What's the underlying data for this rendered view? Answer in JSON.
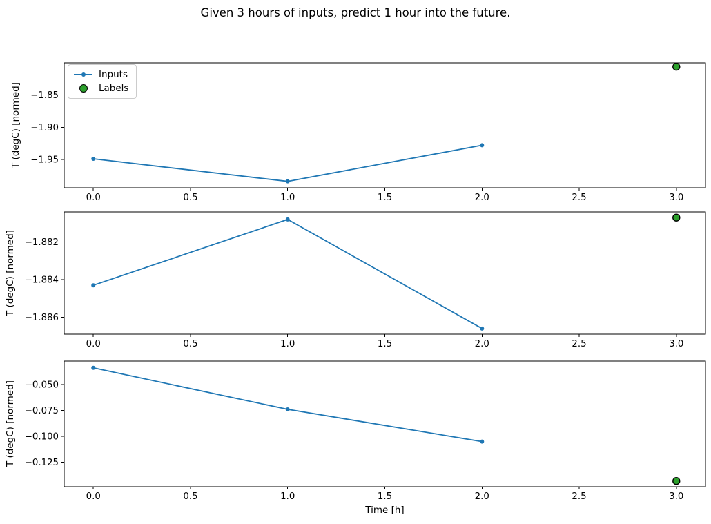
{
  "title": "Given 3 hours of inputs, predict 1 hour into the future.",
  "xlabel": "Time [h]",
  "legend": {
    "inputs": "Inputs",
    "labels": "Labels",
    "position": "upper left of first subplot"
  },
  "colors": {
    "inputs_line": "#1f77b4",
    "labels_fill": "#2ca02c",
    "labels_edge": "#000000",
    "axes": "#000000",
    "background": "#ffffff",
    "legend_border": "#cccccc"
  },
  "chart_data": [
    {
      "type": "line",
      "ylabel": "T (degC) [normed]",
      "series": [
        {
          "name": "Inputs",
          "x": [
            0,
            1,
            2
          ],
          "y": [
            -1.949,
            -1.984,
            -1.928
          ]
        }
      ],
      "labels_scatter": {
        "name": "Labels",
        "x": [
          3
        ],
        "y": [
          -1.806
        ]
      },
      "xlim": [
        -0.15,
        3.15
      ],
      "ylim": [
        -1.994,
        -1.8
      ],
      "xticks": [
        0,
        0.5,
        1,
        1.5,
        2,
        2.5,
        3
      ],
      "xtick_labels": [
        "0.0",
        "0.5",
        "1.0",
        "1.5",
        "2.0",
        "2.5",
        "3.0"
      ],
      "yticks": [
        -1.85,
        -1.9,
        -1.95
      ],
      "ytick_labels": [
        "−1.85",
        "−1.90",
        "−1.95"
      ],
      "grid": false,
      "legend": true
    },
    {
      "type": "line",
      "ylabel": "T (degC) [normed]",
      "series": [
        {
          "name": "Inputs",
          "x": [
            0,
            1,
            2
          ],
          "y": [
            -1.8843,
            -1.8808,
            -1.8866
          ]
        }
      ],
      "labels_scatter": {
        "name": "Labels",
        "x": [
          3
        ],
        "y": [
          -1.8807
        ]
      },
      "xlim": [
        -0.15,
        3.15
      ],
      "ylim": [
        -1.8869,
        -1.8804
      ],
      "xticks": [
        0,
        0.5,
        1,
        1.5,
        2,
        2.5,
        3
      ],
      "xtick_labels": [
        "0.0",
        "0.5",
        "1.0",
        "1.5",
        "2.0",
        "2.5",
        "3.0"
      ],
      "yticks": [
        -1.882,
        -1.884,
        -1.886
      ],
      "ytick_labels": [
        "−1.882",
        "−1.884",
        "−1.886"
      ],
      "grid": false,
      "legend": false
    },
    {
      "type": "line",
      "ylabel": "T (degC) [normed]",
      "series": [
        {
          "name": "Inputs",
          "x": [
            0,
            1,
            2
          ],
          "y": [
            -0.034,
            -0.074,
            -0.105
          ]
        }
      ],
      "labels_scatter": {
        "name": "Labels",
        "x": [
          3
        ],
        "y": [
          -0.143
        ]
      },
      "xlim": [
        -0.15,
        3.15
      ],
      "ylim": [
        -0.1485,
        -0.0275
      ],
      "xticks": [
        0,
        0.5,
        1,
        1.5,
        2,
        2.5,
        3
      ],
      "xtick_labels": [
        "0.0",
        "0.5",
        "1.0",
        "1.5",
        "2.0",
        "2.5",
        "3.0"
      ],
      "yticks": [
        -0.05,
        -0.075,
        -0.1,
        -0.125
      ],
      "ytick_labels": [
        "−0.050",
        "−0.075",
        "−0.100",
        "−0.125"
      ],
      "grid": false,
      "legend": false
    }
  ]
}
